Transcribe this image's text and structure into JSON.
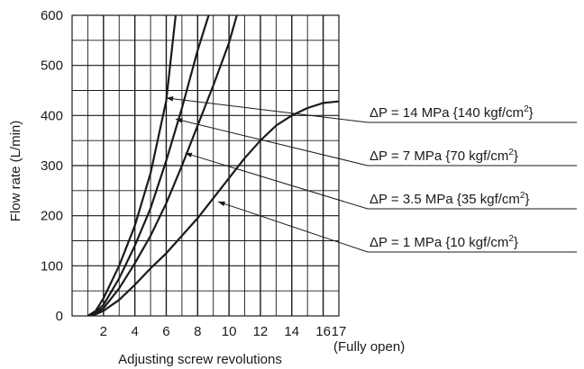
{
  "chart_data": {
    "type": "line",
    "xlabel": "Adjusting screw revolutions",
    "ylabel": "Flow rate (L/min)",
    "xlim": [
      0,
      17
    ],
    "ylim": [
      0,
      600
    ],
    "grid": true,
    "x_ticks": [
      {
        "v": 2,
        "label": "2"
      },
      {
        "v": 4,
        "label": "4"
      },
      {
        "v": 6,
        "label": "6"
      },
      {
        "v": 8,
        "label": "8"
      },
      {
        "v": 10,
        "label": "10"
      },
      {
        "v": 12,
        "label": "12"
      },
      {
        "v": 14,
        "label": "14"
      },
      {
        "v": 16,
        "label": "16"
      },
      {
        "v": 17,
        "label": "17"
      }
    ],
    "x_end_note": "(Fully open)",
    "y_ticks": [
      0,
      100,
      200,
      300,
      400,
      500,
      600
    ],
    "series": [
      {
        "name": "ΔP = 14 MPa {140 kgf/cm²}",
        "label_pre": "ΔP = 14 MPa {140 kgf/cm",
        "label_sup": "2",
        "label_post": "}",
        "label_anchor": [
          6.0,
          435
        ],
        "x": [
          1,
          1.5,
          2,
          3,
          4,
          5,
          6,
          6.6
        ],
        "y": [
          0,
          10,
          35,
          100,
          180,
          285,
          430,
          600
        ]
      },
      {
        "name": "ΔP = 7 MPa {70 kgf/cm²}",
        "label_pre": "ΔP = 7 MPa {70 kgf/cm",
        "label_sup": "2",
        "label_post": "}",
        "label_anchor": [
          6.6,
          393
        ],
        "x": [
          1,
          1.5,
          2,
          3,
          4,
          5,
          6,
          7,
          8,
          8.7
        ],
        "y": [
          0,
          8,
          22,
          75,
          140,
          215,
          310,
          415,
          530,
          600
        ]
      },
      {
        "name": "ΔP = 3.5 MPa {35 kgf/cm²}",
        "label_pre": "ΔP = 3.5 MPa {35 kgf/cm",
        "label_sup": "2",
        "label_post": "}",
        "label_anchor": [
          7.2,
          325
        ],
        "x": [
          1,
          1.5,
          2,
          3,
          4,
          5,
          6,
          7,
          8,
          9,
          10,
          10.5
        ],
        "y": [
          0,
          6,
          15,
          55,
          105,
          160,
          225,
          300,
          380,
          460,
          545,
          600
        ]
      },
      {
        "name": "ΔP = 1 MPa {10 kgf/cm²}",
        "label_pre": "ΔP = 1 MPa {10 kgf/cm",
        "label_sup": "2",
        "label_post": "}",
        "label_anchor": [
          9.3,
          228
        ],
        "x": [
          1,
          1.5,
          2,
          3,
          4,
          5,
          6,
          7,
          8,
          9,
          10,
          11,
          12,
          13,
          14,
          15,
          16,
          17
        ],
        "y": [
          0,
          3,
          10,
          32,
          62,
          95,
          125,
          160,
          195,
          235,
          275,
          315,
          350,
          380,
          400,
          415,
          425,
          428
        ]
      }
    ]
  }
}
